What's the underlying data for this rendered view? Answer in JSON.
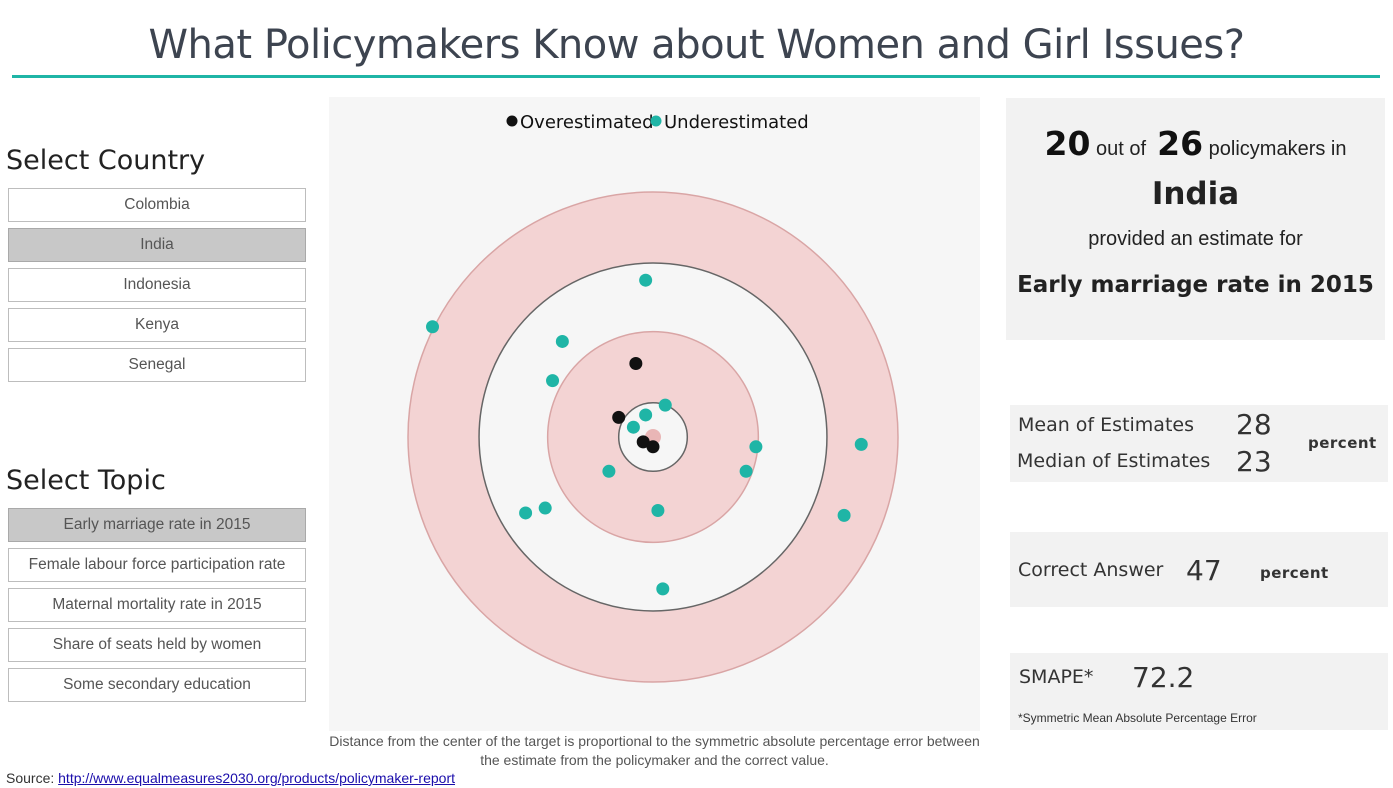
{
  "title": "What Policymakers Know about Women and Girl Issues?",
  "country_section": {
    "heading": "Select Country",
    "items": [
      {
        "label": "Colombia",
        "selected": false
      },
      {
        "label": "India",
        "selected": true
      },
      {
        "label": "Indonesia",
        "selected": false
      },
      {
        "label": "Kenya",
        "selected": false
      },
      {
        "label": "Senegal",
        "selected": false
      }
    ]
  },
  "topic_section": {
    "heading": "Select Topic",
    "items": [
      {
        "label": "Early marriage rate in 2015",
        "selected": true
      },
      {
        "label": "Female labour force participation rate",
        "selected": false
      },
      {
        "label": "Maternal mortality rate in 2015",
        "selected": false
      },
      {
        "label": "Share of seats held by women",
        "selected": false
      },
      {
        "label": "Some secondary education",
        "selected": false
      }
    ]
  },
  "chart_data": {
    "type": "scatter",
    "legend": [
      {
        "name": "Overestimated",
        "color": "#111111"
      },
      {
        "name": "Underestimated",
        "color": "#1fb5a6"
      }
    ],
    "legend_position": "top-center",
    "points": [
      {
        "x": -0.07,
        "y": 0.3,
        "group": "Overestimated"
      },
      {
        "x": -0.14,
        "y": 0.08,
        "group": "Overestimated"
      },
      {
        "x": -0.04,
        "y": -0.02,
        "group": "Overestimated"
      },
      {
        "x": 0.0,
        "y": -0.04,
        "group": "Overestimated"
      },
      {
        "x": -0.03,
        "y": 0.64,
        "group": "Underestimated"
      },
      {
        "x": -0.9,
        "y": 0.45,
        "group": "Underestimated"
      },
      {
        "x": -0.37,
        "y": 0.39,
        "group": "Underestimated"
      },
      {
        "x": -0.41,
        "y": 0.23,
        "group": "Underestimated"
      },
      {
        "x": 0.05,
        "y": 0.13,
        "group": "Underestimated"
      },
      {
        "x": -0.03,
        "y": 0.09,
        "group": "Underestimated"
      },
      {
        "x": -0.08,
        "y": 0.04,
        "group": "Underestimated"
      },
      {
        "x": 0.42,
        "y": -0.04,
        "group": "Underestimated"
      },
      {
        "x": 0.85,
        "y": -0.03,
        "group": "Underestimated"
      },
      {
        "x": 0.38,
        "y": -0.14,
        "group": "Underestimated"
      },
      {
        "x": -0.18,
        "y": -0.14,
        "group": "Underestimated"
      },
      {
        "x": -0.44,
        "y": -0.29,
        "group": "Underestimated"
      },
      {
        "x": -0.52,
        "y": -0.31,
        "group": "Underestimated"
      },
      {
        "x": 0.02,
        "y": -0.3,
        "group": "Underestimated"
      },
      {
        "x": 0.78,
        "y": -0.32,
        "group": "Underestimated"
      },
      {
        "x": 0.04,
        "y": -0.62,
        "group": "Underestimated"
      }
    ],
    "rings": [
      {
        "r": 1.0,
        "fill": "#f3d3d3"
      },
      {
        "r": 0.71,
        "fill": "#f6f6f6"
      },
      {
        "r": 0.43,
        "fill": "#f3d3d3"
      },
      {
        "r": 0.14,
        "fill": "#f6f6f6"
      }
    ],
    "center_marker_color": "#e9b6b6"
  },
  "caption": "Distance from the center of the target is proportional to the symmetric absolute percentage error between the estimate from the policymaker and the correct value.",
  "source": {
    "prefix": "Source: ",
    "link": "http://www.equalmeasures2030.org/products/policymaker-report"
  },
  "summary": {
    "count": "20",
    "out_of_text": "out of",
    "total": "26",
    "policymakers_in": "policymakers in",
    "country": "India",
    "provided_text": "provided an estimate for",
    "topic": "Early marriage rate in 2015"
  },
  "stats": {
    "mean_label": "Mean of Estimates",
    "mean_value": "28",
    "median_label": "Median of Estimates",
    "median_value": "23",
    "unit": "percent"
  },
  "correct": {
    "label": "Correct Answer",
    "value": "47",
    "unit": "percent"
  },
  "smape": {
    "label": "SMAPE*",
    "value": "72.2",
    "footnote": "*Symmetric Mean Absolute Percentage Error"
  }
}
